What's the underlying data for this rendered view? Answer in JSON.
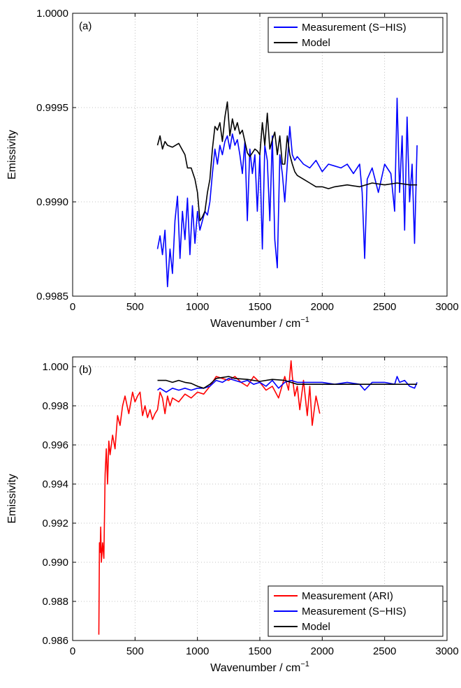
{
  "chart_data": [
    {
      "panel": "(a)",
      "type": "line",
      "xlabel": "Wavenumber / cm",
      "xlabel_sup": "−1",
      "ylabel": "Emissivity",
      "xlim": [
        0,
        3000
      ],
      "ylim": [
        0.9985,
        1.0
      ],
      "xticks": [
        "0",
        "500",
        "1000",
        "1500",
        "2000",
        "2500",
        "3000"
      ],
      "yticks": [
        "0.9985",
        "0.9990",
        "0.9995",
        "1.0000"
      ],
      "grid": true,
      "legend_position": "top-right",
      "series": [
        {
          "name": "Measurement (S−HIS)",
          "color": "#0000ff",
          "x": [
            680,
            700,
            720,
            740,
            760,
            780,
            800,
            820,
            840,
            860,
            880,
            900,
            920,
            940,
            960,
            980,
            1000,
            1020,
            1040,
            1060,
            1080,
            1100,
            1120,
            1140,
            1160,
            1180,
            1200,
            1220,
            1240,
            1260,
            1280,
            1300,
            1320,
            1340,
            1360,
            1380,
            1400,
            1420,
            1440,
            1460,
            1480,
            1500,
            1520,
            1540,
            1560,
            1580,
            1600,
            1620,
            1640,
            1660,
            1680,
            1700,
            1720,
            1740,
            1760,
            1780,
            1800,
            1850,
            1900,
            1950,
            2000,
            2050,
            2100,
            2150,
            2200,
            2250,
            2300,
            2320,
            2340,
            2360,
            2400,
            2450,
            2500,
            2550,
            2580,
            2600,
            2620,
            2640,
            2660,
            2680,
            2700,
            2720,
            2740,
            2760
          ],
          "y": [
            0.99875,
            0.99882,
            0.99872,
            0.99885,
            0.99855,
            0.99875,
            0.99862,
            0.9989,
            0.99903,
            0.9987,
            0.99895,
            0.9988,
            0.99902,
            0.99872,
            0.99898,
            0.99878,
            0.99895,
            0.99885,
            0.9989,
            0.99895,
            0.99893,
            0.999,
            0.99915,
            0.99928,
            0.9992,
            0.9993,
            0.99925,
            0.99932,
            0.99935,
            0.99928,
            0.99936,
            0.9993,
            0.99933,
            0.99925,
            0.99915,
            0.99932,
            0.9989,
            0.99928,
            0.99915,
            0.99925,
            0.99895,
            0.99925,
            0.99875,
            0.9993,
            0.99922,
            0.9989,
            0.99935,
            0.9988,
            0.99865,
            0.99925,
            0.99915,
            0.999,
            0.9992,
            0.9994,
            0.99925,
            0.99922,
            0.99924,
            0.9992,
            0.99918,
            0.99922,
            0.99916,
            0.9992,
            0.99919,
            0.99918,
            0.9992,
            0.99915,
            0.9992,
            0.99905,
            0.9987,
            0.99912,
            0.99918,
            0.99905,
            0.9992,
            0.99915,
            0.99895,
            0.99955,
            0.99905,
            0.99935,
            0.99885,
            0.99945,
            0.999,
            0.9992,
            0.99878,
            0.9993
          ]
        },
        {
          "name": "Model",
          "color": "#000000",
          "x": [
            680,
            700,
            720,
            740,
            760,
            800,
            850,
            900,
            920,
            950,
            980,
            1000,
            1020,
            1040,
            1060,
            1080,
            1100,
            1120,
            1140,
            1160,
            1180,
            1200,
            1220,
            1240,
            1260,
            1280,
            1300,
            1320,
            1340,
            1360,
            1380,
            1400,
            1420,
            1440,
            1460,
            1480,
            1500,
            1520,
            1540,
            1560,
            1580,
            1600,
            1620,
            1640,
            1660,
            1680,
            1700,
            1720,
            1740,
            1760,
            1780,
            1800,
            1850,
            1900,
            1950,
            2000,
            2050,
            2100,
            2200,
            2300,
            2400,
            2500,
            2600,
            2700,
            2760
          ],
          "y": [
            0.9993,
            0.99935,
            0.99928,
            0.99932,
            0.9993,
            0.99929,
            0.99931,
            0.99925,
            0.99918,
            0.99918,
            0.99912,
            0.99905,
            0.9989,
            0.99892,
            0.99895,
            0.99905,
            0.99912,
            0.99928,
            0.9994,
            0.99938,
            0.99942,
            0.99932,
            0.99945,
            0.99953,
            0.99935,
            0.99944,
            0.99938,
            0.99942,
            0.99936,
            0.99938,
            0.99932,
            0.99926,
            0.99924,
            0.99926,
            0.99928,
            0.99927,
            0.99925,
            0.99942,
            0.9993,
            0.99947,
            0.99928,
            0.99933,
            0.99937,
            0.99925,
            0.99935,
            0.9992,
            0.9992,
            0.99935,
            0.99925,
            0.9992,
            0.99916,
            0.99914,
            0.99912,
            0.9991,
            0.99908,
            0.99908,
            0.99907,
            0.99908,
            0.99909,
            0.99908,
            0.9991,
            0.99909,
            0.9991,
            0.99909,
            0.99909
          ]
        }
      ]
    },
    {
      "panel": "(b)",
      "type": "line",
      "xlabel": "Wavenumber / cm",
      "xlabel_sup": "−1",
      "ylabel": "Emissivity",
      "xlim": [
        0,
        3000
      ],
      "ylim": [
        0.986,
        1.0005
      ],
      "xticks": [
        "0",
        "500",
        "1000",
        "1500",
        "2000",
        "2500",
        "3000"
      ],
      "yticks": [
        "0.986",
        "0.988",
        "0.990",
        "0.992",
        "0.994",
        "0.996",
        "0.998",
        "1.000"
      ],
      "grid": true,
      "legend_position": "bottom-right",
      "series": [
        {
          "name": "Measurement (ARI)",
          "color": "#ff0000",
          "x": [
            210,
            215,
            220,
            225,
            230,
            240,
            250,
            260,
            270,
            280,
            290,
            300,
            320,
            340,
            360,
            380,
            400,
            420,
            450,
            480,
            500,
            520,
            540,
            560,
            580,
            600,
            620,
            640,
            660,
            680,
            700,
            720,
            740,
            760,
            780,
            800,
            850,
            900,
            950,
            1000,
            1050,
            1100,
            1150,
            1200,
            1250,
            1300,
            1350,
            1400,
            1450,
            1500,
            1550,
            1600,
            1650,
            1700,
            1730,
            1750,
            1760,
            1780,
            1800,
            1820,
            1850,
            1880,
            1900,
            1920,
            1950,
            1980
          ],
          "y": [
            0.9863,
            0.991,
            0.9905,
            0.9918,
            0.99,
            0.991,
            0.9902,
            0.9945,
            0.9958,
            0.994,
            0.9962,
            0.9955,
            0.9965,
            0.9958,
            0.9975,
            0.997,
            0.998,
            0.9985,
            0.9976,
            0.9987,
            0.9982,
            0.9985,
            0.9987,
            0.9975,
            0.998,
            0.9974,
            0.9978,
            0.9973,
            0.9976,
            0.9978,
            0.9987,
            0.9984,
            0.9976,
            0.9985,
            0.998,
            0.9984,
            0.9982,
            0.9986,
            0.9984,
            0.9987,
            0.9986,
            0.999,
            0.9995,
            0.9994,
            0.9993,
            0.9995,
            0.9992,
            0.999,
            0.9995,
            0.9992,
            0.9988,
            0.999,
            0.9984,
            0.9995,
            0.9988,
            1.0003,
            0.9995,
            0.9985,
            0.999,
            0.9978,
            0.9993,
            0.9975,
            0.999,
            0.997,
            0.9985,
            0.9976
          ]
        },
        {
          "name": "Measurement (S−HIS)",
          "color": "#0000ff",
          "x": [
            680,
            700,
            750,
            800,
            850,
            900,
            950,
            1000,
            1050,
            1100,
            1150,
            1200,
            1250,
            1300,
            1350,
            1400,
            1450,
            1500,
            1550,
            1600,
            1650,
            1700,
            1750,
            1800,
            1900,
            2000,
            2100,
            2200,
            2300,
            2340,
            2400,
            2500,
            2580,
            2600,
            2620,
            2660,
            2700,
            2740,
            2760
          ],
          "y": [
            0.9988,
            0.9989,
            0.9987,
            0.9989,
            0.9988,
            0.9989,
            0.9988,
            0.9989,
            0.9989,
            0.999,
            0.9993,
            0.9992,
            0.9994,
            0.9993,
            0.9992,
            0.9993,
            0.9991,
            0.9992,
            0.999,
            0.9993,
            0.9989,
            0.9992,
            0.9993,
            0.9992,
            0.9992,
            0.9992,
            0.9991,
            0.9992,
            0.9991,
            0.9988,
            0.9992,
            0.9992,
            0.9991,
            0.9995,
            0.9992,
            0.9993,
            0.999,
            0.9989,
            0.9992
          ]
        },
        {
          "name": "Model",
          "color": "#000000",
          "x": [
            680,
            750,
            800,
            850,
            900,
            950,
            1000,
            1050,
            1100,
            1150,
            1200,
            1250,
            1300,
            1400,
            1500,
            1600,
            1700,
            1800,
            1900,
            2000,
            2200,
            2400,
            2600,
            2760
          ],
          "y": [
            0.9993,
            0.9993,
            0.9992,
            0.9993,
            0.9992,
            0.99915,
            0.999,
            0.9989,
            0.9991,
            0.9994,
            0.99945,
            0.9995,
            0.9994,
            0.99935,
            0.99925,
            0.99935,
            0.9993,
            0.9991,
            0.9991,
            0.9991,
            0.9991,
            0.9991,
            0.9991,
            0.9991
          ]
        }
      ]
    }
  ]
}
